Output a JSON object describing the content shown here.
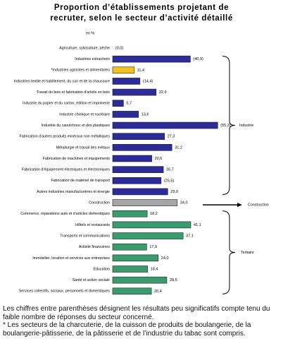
{
  "chart_data": {
    "type": "bar",
    "orientation": "horizontal",
    "title_lines": [
      "Proportion d’établissements projetant de",
      "recruter, selon le secteur d’activité détaillé"
    ],
    "unit_label": "en %",
    "categories": [
      "Agriculture, sylviculture, pêche",
      "Industries extractives",
      "*Industries agricoles et alimentaires",
      "Industries textile et habillement, du cuir et de la chaussure",
      "Travail du bois et fabrication d'article en bois",
      "Industrie du papier et du carton, édition et imprimerie",
      "Industrie chimique et nucléaire",
      "Industrie du caoutchouc et des plastiques",
      "Fabrication d'autres produits minéraux non métalliques",
      "Métallurgie et travail des métaux",
      "Fabrication de machines et équipements",
      "Fabrication d'équipement électriques et électroniques",
      "Fabrication de matériel de transport",
      "Autres industries manufacturières et énergie",
      "Construction",
      "Commerce, réparations auto et d'articles domestiques",
      "Hôtels et restaurants",
      "Transports et communications",
      "Activité financières",
      "Immobilier, location et services aux entreprises",
      "Education",
      "Santé et action sociale",
      "Services collectifs, sociaux, personnels et domestiques"
    ],
    "values": [
      0.0,
      40.9,
      11.4,
      14.4,
      22.9,
      5.7,
      13.6,
      55.3,
      27.3,
      31.2,
      20.6,
      26.7,
      25.5,
      29.0,
      34.0,
      18.2,
      41.1,
      37.1,
      17.9,
      24.0,
      18.4,
      28.5,
      20.4
    ],
    "value_labels": [
      "(0,0)",
      "(40,9)",
      "11,4",
      "(14,4)",
      "22,9",
      "5,7",
      "13,6",
      "(55,3)",
      "27,3",
      "31,2",
      "20,6",
      "26,7",
      "(25,5)",
      "29,0",
      "34,0",
      "18,2",
      "41,1",
      "37,1",
      "17,9",
      "24,0",
      "18,4",
      "28,5",
      "20,4"
    ],
    "colors": [
      "#2b2b9a",
      "#2b2b9a",
      "#f2c318",
      "#2b2b9a",
      "#2b2b9a",
      "#2b2b9a",
      "#2b2b9a",
      "#2b2b9a",
      "#2b2b9a",
      "#2b2b9a",
      "#2b2b9a",
      "#2b2b9a",
      "#2b2b9a",
      "#2b2b9a",
      "#a6a6a6",
      "#3a9b6c",
      "#3a9b6c",
      "#3a9b6c",
      "#3a9b6c",
      "#3a9b6c",
      "#3a9b6c",
      "#3a9b6c",
      "#3a9b6c"
    ],
    "annotations": [
      "Industrie",
      "Construction",
      "Tertiaire"
    ]
  },
  "notes": [
    "Les chiffres entre parenthèses désignent les résultats peu significatifs compte tenu du faible nombre de réponses du secteur concerné.",
    "* Les secteurs de la charcuterie, de la cuisson de produits de boulangerie, de la boulangerie-pâtisserie, de la pâtisserie et de l’industrie du tabac sont compris."
  ]
}
